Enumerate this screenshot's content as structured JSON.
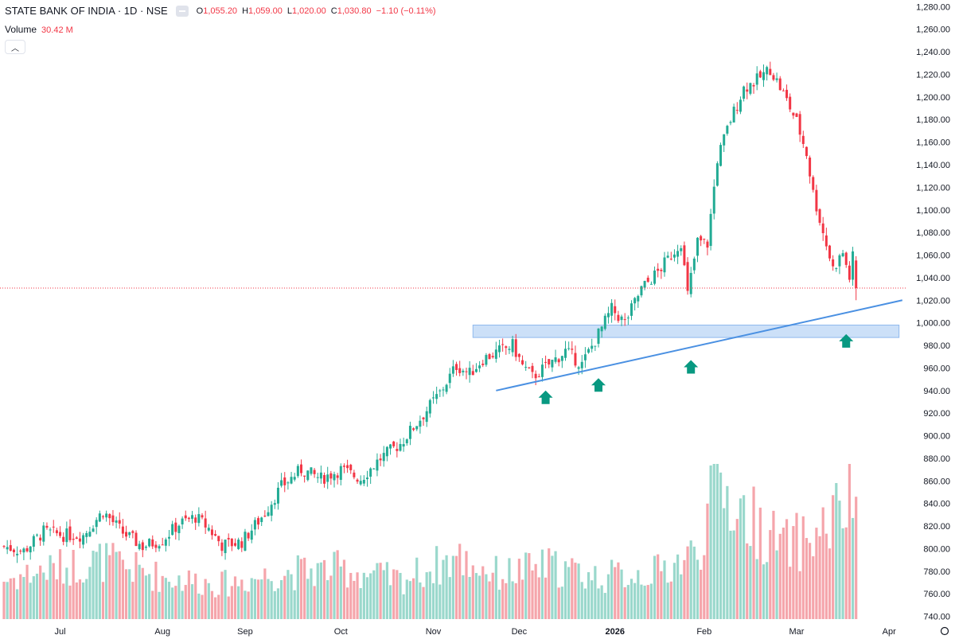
{
  "header": {
    "symbol": "STATE BANK OF INDIA · 1D · NSE",
    "o_label": "O",
    "o_value": "1,055.20",
    "h_label": "H",
    "h_value": "1,059.00",
    "l_label": "L",
    "l_value": "1,020.00",
    "c_label": "C",
    "c_value": "1,030.80",
    "change": "−1.10 (−0.11%)"
  },
  "volume": {
    "label": "Volume",
    "value": "30.42 M"
  },
  "collapse_icon": "chevron-up-icon",
  "colors": {
    "up": "#22ab94",
    "down": "#f23645",
    "up_vol": "#9ad8cc",
    "down_vol": "#f5a5ab",
    "trendline": "#4a90e2",
    "zone": "#bbd6f6",
    "arrow": "#089981"
  },
  "chart_data": {
    "type": "candlestick",
    "title": "STATE BANK OF INDIA · 1D · NSE",
    "ylim": [
      740,
      1285
    ],
    "yticks": [
      "1,280.00",
      "1,260.00",
      "1,240.00",
      "1,220.00",
      "1,200.00",
      "1,180.00",
      "1,160.00",
      "1,140.00",
      "1,120.00",
      "1,100.00",
      "1,080.00",
      "1,060.00",
      "1,040.00",
      "1,020.00",
      "1,000.00",
      "980.00",
      "960.00",
      "940.00",
      "920.00",
      "900.00",
      "880.00",
      "860.00",
      "840.00",
      "820.00",
      "800.00",
      "780.00",
      "760.00",
      "740.00"
    ],
    "xlabels": [
      "Jul",
      "Aug",
      "Sep",
      "Oct",
      "Nov",
      "Dec",
      "2026",
      "Feb",
      "Mar",
      "Apr"
    ],
    "last_price": {
      "value": 1030.8,
      "label": "1,030.80"
    },
    "last_volume_label": "30.42 M",
    "anchors": [
      {
        "d": 0,
        "c": 802
      },
      {
        "d": 6,
        "c": 798
      },
      {
        "d": 12,
        "c": 815
      },
      {
        "d": 18,
        "c": 812
      },
      {
        "d": 24,
        "c": 812
      },
      {
        "d": 30,
        "c": 833
      },
      {
        "d": 36,
        "c": 814
      },
      {
        "d": 42,
        "c": 802
      },
      {
        "d": 48,
        "c": 808
      },
      {
        "d": 53,
        "c": 822
      },
      {
        "d": 58,
        "c": 828
      },
      {
        "d": 62,
        "c": 818
      },
      {
        "d": 66,
        "c": 803
      },
      {
        "d": 72,
        "c": 806
      },
      {
        "d": 78,
        "c": 828
      },
      {
        "d": 84,
        "c": 855
      },
      {
        "d": 90,
        "c": 870
      },
      {
        "d": 96,
        "c": 862
      },
      {
        "d": 102,
        "c": 870
      },
      {
        "d": 108,
        "c": 862
      },
      {
        "d": 114,
        "c": 880
      },
      {
        "d": 120,
        "c": 893
      },
      {
        "d": 126,
        "c": 915
      },
      {
        "d": 132,
        "c": 938
      },
      {
        "d": 137,
        "c": 962
      },
      {
        "d": 141,
        "c": 955
      },
      {
        "d": 145,
        "c": 968
      },
      {
        "d": 150,
        "c": 975
      },
      {
        "d": 154,
        "c": 980
      },
      {
        "d": 157,
        "c": 962
      },
      {
        "d": 160,
        "c": 952
      },
      {
        "d": 165,
        "c": 963
      },
      {
        "d": 170,
        "c": 975
      },
      {
        "d": 175,
        "c": 963
      },
      {
        "d": 180,
        "c": 990
      },
      {
        "d": 184,
        "c": 1012
      },
      {
        "d": 188,
        "c": 1000
      },
      {
        "d": 193,
        "c": 1030
      },
      {
        "d": 198,
        "c": 1045
      },
      {
        "d": 202,
        "c": 1060
      },
      {
        "d": 205,
        "c": 1072
      },
      {
        "d": 207,
        "c": 1025
      },
      {
        "d": 210,
        "c": 1072
      },
      {
        "d": 213,
        "c": 1070
      },
      {
        "d": 216,
        "c": 1145
      },
      {
        "d": 220,
        "c": 1180
      },
      {
        "d": 224,
        "c": 1208
      },
      {
        "d": 228,
        "c": 1215
      },
      {
        "d": 232,
        "c": 1225
      },
      {
        "d": 236,
        "c": 1203
      },
      {
        "d": 240,
        "c": 1178
      },
      {
        "d": 243,
        "c": 1150
      },
      {
        "d": 245,
        "c": 1115
      },
      {
        "d": 248,
        "c": 1080
      },
      {
        "d": 251,
        "c": 1048
      },
      {
        "d": 254,
        "c": 1062
      },
      {
        "d": 256,
        "c": 1040
      },
      {
        "d": 257,
        "c": 1058
      },
      {
        "d": 258,
        "c": 1030.8
      }
    ],
    "volumes": [
      {
        "d": 0,
        "v": 0.28
      },
      {
        "d": 12,
        "v": 0.35
      },
      {
        "d": 30,
        "v": 0.42
      },
      {
        "d": 48,
        "v": 0.3
      },
      {
        "d": 66,
        "v": 0.25
      },
      {
        "d": 84,
        "v": 0.33
      },
      {
        "d": 102,
        "v": 0.36
      },
      {
        "d": 120,
        "v": 0.28
      },
      {
        "d": 137,
        "v": 0.44
      },
      {
        "d": 150,
        "v": 0.32
      },
      {
        "d": 165,
        "v": 0.38
      },
      {
        "d": 180,
        "v": 0.3
      },
      {
        "d": 198,
        "v": 0.34
      },
      {
        "d": 210,
        "v": 0.48
      },
      {
        "d": 216,
        "v": 1.0
      },
      {
        "d": 222,
        "v": 0.8
      },
      {
        "d": 236,
        "v": 0.52
      },
      {
        "d": 246,
        "v": 0.6
      },
      {
        "d": 258,
        "v": 0.88
      }
    ],
    "trendline": {
      "from": {
        "d": 149,
        "p": 940
      },
      "to": {
        "d": 272,
        "p": 1020
      }
    },
    "zone": {
      "from_d": 142,
      "to_d": 271,
      "low": 987,
      "high": 998
    },
    "arrows": [
      {
        "d": 164,
        "p": 940
      },
      {
        "d": 180,
        "p": 951
      },
      {
        "d": 208,
        "p": 967
      },
      {
        "d": 255,
        "p": 990
      }
    ]
  }
}
